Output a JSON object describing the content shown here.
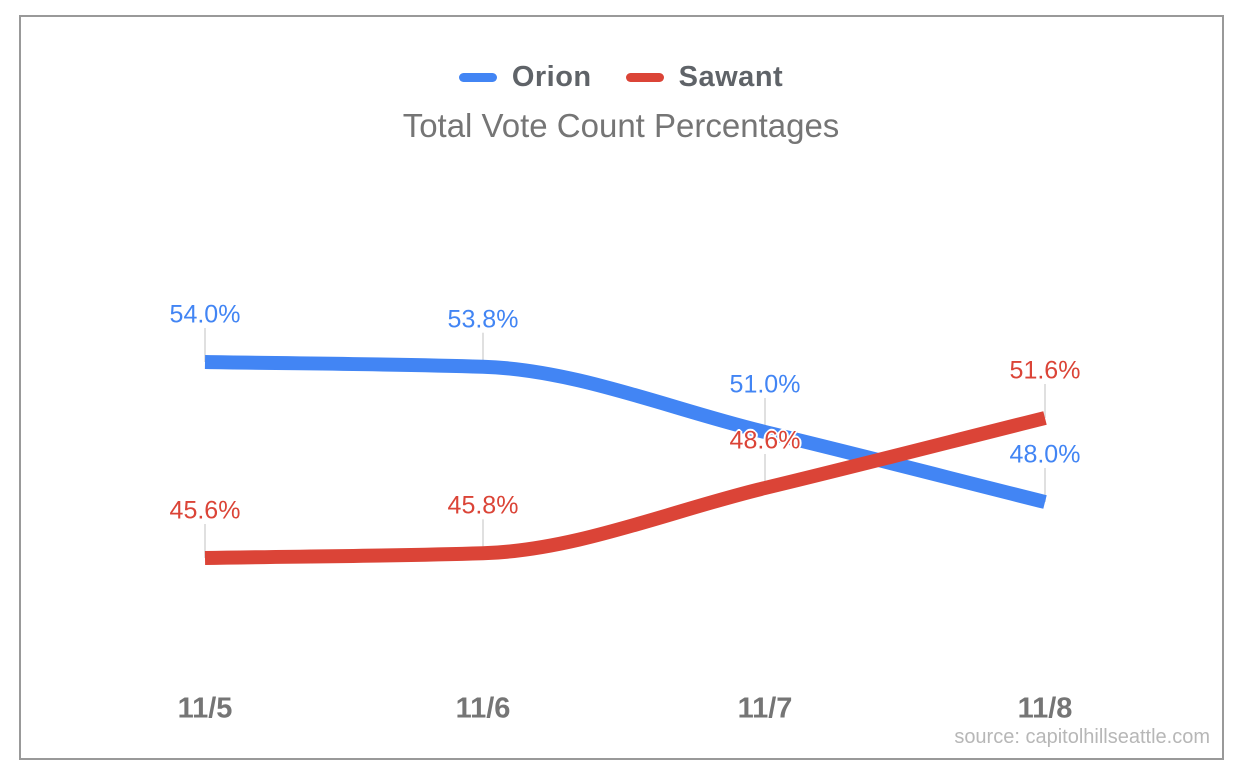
{
  "title": "Total Vote Count Percentages",
  "source_credit": "source: capitolhillseattle.com",
  "chart_data": {
    "type": "line",
    "title": "Total Vote Count Percentages",
    "xlabel": "",
    "ylabel": "",
    "categories": [
      "11/5",
      "11/6",
      "11/7",
      "11/8"
    ],
    "series": [
      {
        "name": "Orion",
        "color": "#4285F4",
        "values": [
          54.0,
          53.8,
          51.0,
          48.0
        ],
        "point_labels": [
          "54.0%",
          "53.8%",
          "51.0%",
          "48.0%"
        ]
      },
      {
        "name": "Sawant",
        "color": "#DB4437",
        "values": [
          45.6,
          45.8,
          48.6,
          51.6
        ],
        "point_labels": [
          "45.6%",
          "45.8%",
          "48.6%",
          "51.6%"
        ]
      }
    ],
    "ylim": [
      45.6,
      54.0
    ],
    "grid": false,
    "legend_position": "top",
    "curve": "smooth",
    "leader_line_color": "#e0e0e0",
    "source": "source: capitolhillseattle.com"
  }
}
